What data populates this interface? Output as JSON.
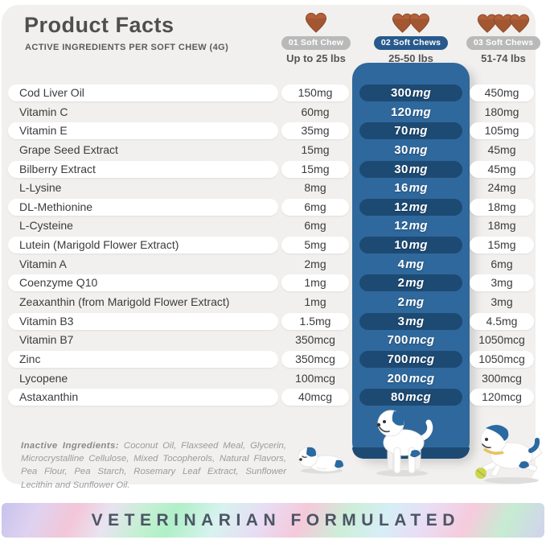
{
  "header": {
    "title": "Product Facts",
    "subtitle": "ACTIVE INGREDIENTS PER SOFT CHEW (4G)"
  },
  "dose_columns": [
    {
      "badge": "01 Soft Chew",
      "weight": "Up to 25 lbs",
      "chews": 1,
      "highlighted": false
    },
    {
      "badge": "02 Soft Chews",
      "weight": "25-50 lbs",
      "chews": 2,
      "highlighted": true
    },
    {
      "badge": "03 Soft Chews",
      "weight": "51-74 lbs",
      "chews": 3,
      "highlighted": false
    }
  ],
  "table": {
    "rows": [
      {
        "name": "Cod Liver Oil",
        "dose1": "150mg",
        "dose2_num": "300",
        "dose2_unit": "mg",
        "dose3": "450mg"
      },
      {
        "name": "Vitamin C",
        "dose1": "60mg",
        "dose2_num": "120",
        "dose2_unit": "mg",
        "dose3": "180mg"
      },
      {
        "name": "Vitamin E",
        "dose1": "35mg",
        "dose2_num": "70",
        "dose2_unit": "mg",
        "dose3": "105mg"
      },
      {
        "name": "Grape Seed Extract",
        "dose1": "15mg",
        "dose2_num": "30",
        "dose2_unit": "mg",
        "dose3": "45mg"
      },
      {
        "name": "Bilberry Extract",
        "dose1": "15mg",
        "dose2_num": "30",
        "dose2_unit": "mg",
        "dose3": "45mg"
      },
      {
        "name": "L-Lysine",
        "dose1": "8mg",
        "dose2_num": "16",
        "dose2_unit": "mg",
        "dose3": "24mg"
      },
      {
        "name": "DL-Methionine",
        "dose1": "6mg",
        "dose2_num": "12",
        "dose2_unit": "mg",
        "dose3": "18mg"
      },
      {
        "name": "L-Cysteine",
        "dose1": "6mg",
        "dose2_num": "12",
        "dose2_unit": "mg",
        "dose3": "18mg"
      },
      {
        "name": "Lutein (Marigold Flower Extract)",
        "dose1": "5mg",
        "dose2_num": "10",
        "dose2_unit": "mg",
        "dose3": "15mg"
      },
      {
        "name": "Vitamin A",
        "dose1": "2mg",
        "dose2_num": "4",
        "dose2_unit": "mg",
        "dose3": "6mg"
      },
      {
        "name": "Coenzyme Q10",
        "dose1": "1mg",
        "dose2_num": "2",
        "dose2_unit": "mg",
        "dose3": "3mg"
      },
      {
        "name": "Zeaxanthin (from Marigold Flower Extract)",
        "dose1": "1mg",
        "dose2_num": "2",
        "dose2_unit": "mg",
        "dose3": "3mg"
      },
      {
        "name": "Vitamin B3",
        "dose1": "1.5mg",
        "dose2_num": "3",
        "dose2_unit": "mg",
        "dose3": "4.5mg"
      },
      {
        "name": "Vitamin B7",
        "dose1": "350mcg",
        "dose2_num": "700",
        "dose2_unit": "mcg",
        "dose3": "1050mcg"
      },
      {
        "name": "Zinc",
        "dose1": "350mcg",
        "dose2_num": "700",
        "dose2_unit": "mcg",
        "dose3": "1050mcg"
      },
      {
        "name": "Lycopene",
        "dose1": "100mcg",
        "dose2_num": "200",
        "dose2_unit": "mcg",
        "dose3": "300mcg"
      },
      {
        "name": "Astaxanthin",
        "dose1": "40mcg",
        "dose2_num": "80",
        "dose2_unit": "mcg",
        "dose3": "120mcg"
      }
    ]
  },
  "inactive": {
    "label": "Inactive Ingredients:",
    "text": "Coconut Oil, Flaxseed Meal, Glycerin, Microcrystalline Cellulose, Mixed Tocopherols, Natural Flavors, Pea Flour, Pea Starch, Rosemary Leaf Extract, Sunflower Lecithin and Sunflower Oil."
  },
  "footer": {
    "banner": "VETERINARIAN FORMULATED"
  },
  "colors": {
    "accent_blue": "#2f689c",
    "accent_blue_dark": "#1d4a73",
    "badge_gray": "#b9b9b9",
    "panel_bg": "#f1f0ee",
    "chew_brown": "#b2613a",
    "chew_brown_dark": "#8d4a28"
  }
}
